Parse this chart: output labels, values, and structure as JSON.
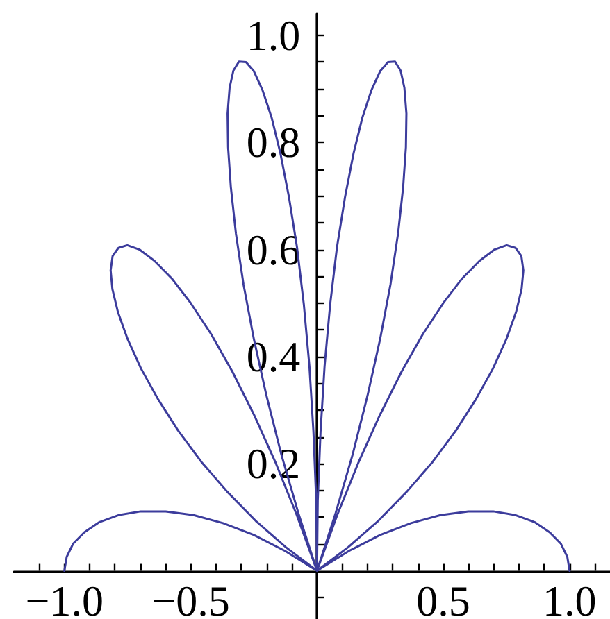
{
  "chart_data": {
    "type": "line",
    "color": "#3c3c9c",
    "marker": "none",
    "grid": false,
    "x": [
      1,
      0.991,
      0.965,
      0.921,
      0.861,
      0.786,
      0.698,
      0.599,
      0.489,
      0.372,
      0.25,
      0.126,
      0,
      0.123,
      0.242,
      0.354,
      0.457,
      0.55,
      0.63,
      0.697,
      0.75,
      0.788,
      0.81,
      0.817,
      0.809,
      0.786,
      0.751,
      0.703,
      0.644,
      0.575,
      0.5,
      0.419,
      0.335,
      0.249,
      0.163,
      0.08,
      0,
      0.074,
      0.141,
      0.2,
      0.25,
      0.291,
      0.321,
      0.341,
      0.352,
      0.354,
      0.346,
      0.331,
      0.309,
      0.281,
      0.25,
      0.216,
      0.18,
      0.145,
      0.111,
      0.079,
      0.052,
      0.03,
      0.014,
      0.003,
      0,
      -0.003,
      -0.014,
      -0.03,
      -0.052,
      -0.079,
      -0.111,
      -0.145,
      -0.18,
      -0.216,
      -0.25,
      -0.281,
      -0.309,
      -0.331,
      -0.346,
      -0.354,
      -0.352,
      -0.341,
      -0.321,
      -0.291,
      -0.25,
      -0.2,
      -0.141,
      -0.074,
      0,
      -0.08,
      -0.163,
      -0.249,
      -0.335,
      -0.419,
      -0.5,
      -0.575,
      -0.644,
      -0.703,
      -0.751,
      -0.786,
      -0.809,
      -0.817,
      -0.81,
      -0.788,
      -0.75,
      -0.697,
      -0.63,
      -0.55,
      -0.457,
      -0.354,
      -0.242,
      -0.123,
      0,
      -0.126,
      -0.25,
      -0.372,
      -0.489,
      -0.599,
      -0.698,
      -0.786,
      -0.861,
      -0.921,
      -0.965,
      -0.991,
      -1
    ],
    "values": [
      0,
      0.026,
      0.051,
      0.072,
      0.091,
      0.104,
      0.111,
      0.111,
      0.104,
      0.089,
      0.067,
      0.037,
      0,
      0.044,
      0.093,
      0.147,
      0.203,
      0.262,
      0.321,
      0.378,
      0.433,
      0.483,
      0.526,
      0.561,
      0.588,
      0.603,
      0.608,
      0.6,
      0.579,
      0.546,
      0.5,
      0.442,
      0.372,
      0.291,
      0.201,
      0.104,
      0,
      0.108,
      0.217,
      0.327,
      0.433,
      0.535,
      0.63,
      0.716,
      0.791,
      0.854,
      0.902,
      0.934,
      0.951,
      0.95,
      0.933,
      0.898,
      0.847,
      0.78,
      0.698,
      0.604,
      0.497,
      0.382,
      0.259,
      0.131,
      0,
      0.131,
      0.259,
      0.382,
      0.497,
      0.604,
      0.698,
      0.78,
      0.847,
      0.898,
      0.933,
      0.95,
      0.951,
      0.934,
      0.902,
      0.854,
      0.791,
      0.716,
      0.63,
      0.535,
      0.433,
      0.327,
      0.217,
      0.108,
      0,
      0.104,
      0.201,
      0.291,
      0.372,
      0.442,
      0.5,
      0.546,
      0.579,
      0.6,
      0.608,
      0.603,
      0.588,
      0.561,
      0.526,
      0.483,
      0.433,
      0.378,
      0.321,
      0.262,
      0.203,
      0.147,
      0.093,
      0.044,
      0,
      0.037,
      0.067,
      0.089,
      0.104,
      0.111,
      0.111,
      0.104,
      0.091,
      0.072,
      0.051,
      0.026,
      0
    ],
    "xlim": [
      -1.2,
      1.16
    ],
    "ylim": [
      -0.09,
      1.04
    ],
    "xticks": [
      {
        "value": -1.1,
        "label": null
      },
      {
        "value": -1,
        "label": "−1.0"
      },
      {
        "value": -0.9,
        "label": null
      },
      {
        "value": -0.8,
        "label": null
      },
      {
        "value": -0.7,
        "label": null
      },
      {
        "value": -0.6,
        "label": null
      },
      {
        "value": -0.5,
        "label": "−0.5"
      },
      {
        "value": -0.4,
        "label": null
      },
      {
        "value": -0.3,
        "label": null
      },
      {
        "value": -0.2,
        "label": null
      },
      {
        "value": -0.1,
        "label": null
      },
      {
        "value": 0.1,
        "label": null
      },
      {
        "value": 0.2,
        "label": null
      },
      {
        "value": 0.3,
        "label": null
      },
      {
        "value": 0.4,
        "label": null
      },
      {
        "value": 0.5,
        "label": "0.5"
      },
      {
        "value": 0.6,
        "label": null
      },
      {
        "value": 0.7,
        "label": null
      },
      {
        "value": 0.8,
        "label": null
      },
      {
        "value": 0.9,
        "label": null
      },
      {
        "value": 1,
        "label": "1.0"
      },
      {
        "value": 1.1,
        "label": null
      }
    ],
    "yticks": [
      {
        "value": -0.05,
        "label": null
      },
      {
        "value": 0.05,
        "label": null
      },
      {
        "value": 0.1,
        "label": null
      },
      {
        "value": 0.15,
        "label": null
      },
      {
        "value": 0.2,
        "label": "0.2"
      },
      {
        "value": 0.25,
        "label": null
      },
      {
        "value": 0.3,
        "label": null
      },
      {
        "value": 0.35,
        "label": null
      },
      {
        "value": 0.4,
        "label": "0.4"
      },
      {
        "value": 0.45,
        "label": null
      },
      {
        "value": 0.5,
        "label": null
      },
      {
        "value": 0.55,
        "label": null
      },
      {
        "value": 0.6,
        "label": "0.6"
      },
      {
        "value": 0.65,
        "label": null
      },
      {
        "value": 0.7,
        "label": null
      },
      {
        "value": 0.75,
        "label": null
      },
      {
        "value": 0.8,
        "label": "0.8"
      },
      {
        "value": 0.85,
        "label": null
      },
      {
        "value": 0.9,
        "label": null
      },
      {
        "value": 0.95,
        "label": null
      },
      {
        "value": 1,
        "label": "1.0"
      }
    ]
  }
}
